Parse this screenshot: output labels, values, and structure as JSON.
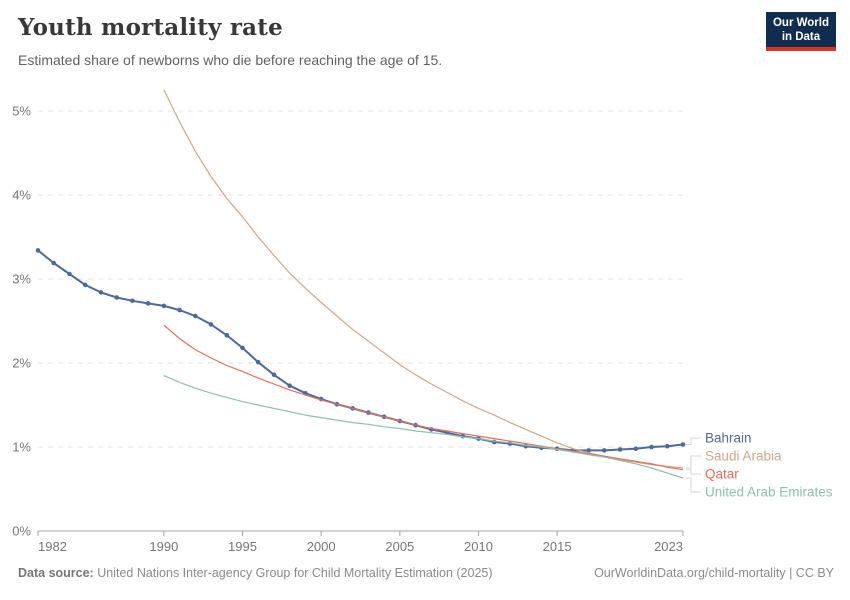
{
  "header": {
    "title": "Youth mortality rate",
    "subtitle": "Estimated share of newborns who die before reaching the age of 15."
  },
  "logo": {
    "line1": "Our World",
    "line2": "in Data",
    "bg_color": "#102d50",
    "accent_color": "#dc3226"
  },
  "footer": {
    "source_label": "Data source:",
    "source_text": "United Nations Inter-agency Group for Child Mortality Estimation (2025)",
    "link_text": "OurWorldinData.org/child-mortality",
    "separator": "|",
    "license_text": "CC BY"
  },
  "chart_data": {
    "type": "line",
    "title": "Youth mortality rate",
    "unit": "%",
    "xlim": [
      1982,
      2023
    ],
    "ylim": [
      0,
      5.3
    ],
    "x_ticks": [
      "1982",
      "1990",
      "1995",
      "2000",
      "2005",
      "2010",
      "2015",
      "2023"
    ],
    "y_ticks": [
      "0%",
      "1%",
      "2%",
      "3%",
      "4%",
      "5%"
    ],
    "grid": "horizontal-dashed",
    "legend_position": "right-of-line-ends",
    "colors": {
      "gridline": "#e0e0e0",
      "axis": "#a3a3a3",
      "tick_label": "#757575",
      "legend_connector": "#d4d4d4"
    },
    "series": [
      {
        "name": "Bahrain",
        "color": "#4c6a9c",
        "markers": true,
        "start_year": 1982,
        "end_year": 2023,
        "values": [
          3.34,
          3.19,
          3.06,
          2.93,
          2.84,
          2.78,
          2.74,
          2.71,
          2.68,
          2.63,
          2.56,
          2.46,
          2.33,
          2.18,
          2.01,
          1.86,
          1.73,
          1.64,
          1.57,
          1.51,
          1.46,
          1.41,
          1.36,
          1.31,
          1.26,
          1.21,
          1.17,
          1.13,
          1.1,
          1.06,
          1.04,
          1.01,
          0.99,
          0.98,
          0.96,
          0.96,
          0.96,
          0.97,
          0.98,
          1.0,
          1.01,
          1.03
        ]
      },
      {
        "name": "Saudi Arabia",
        "color": "#d3a585",
        "markers": false,
        "start_year": 1990,
        "end_year": 2023,
        "values": [
          5.25,
          4.87,
          4.52,
          4.22,
          3.96,
          3.74,
          3.5,
          3.28,
          3.07,
          2.89,
          2.72,
          2.56,
          2.4,
          2.26,
          2.12,
          1.98,
          1.86,
          1.75,
          1.65,
          1.55,
          1.46,
          1.38,
          1.29,
          1.21,
          1.13,
          1.05,
          0.98,
          0.93,
          0.89,
          0.85,
          0.82,
          0.79,
          0.77,
          0.75
        ]
      },
      {
        "name": "Qatar",
        "color": "#e56e5a",
        "markers": false,
        "start_year": 1990,
        "end_year": 2023,
        "values": [
          2.45,
          2.29,
          2.16,
          2.06,
          1.97,
          1.9,
          1.82,
          1.75,
          1.68,
          1.62,
          1.56,
          1.51,
          1.46,
          1.41,
          1.36,
          1.31,
          1.26,
          1.22,
          1.19,
          1.16,
          1.13,
          1.1,
          1.07,
          1.04,
          1.01,
          0.98,
          0.95,
          0.92,
          0.89,
          0.86,
          0.83,
          0.8,
          0.76,
          0.73
        ]
      },
      {
        "name": "United Arab Emirates",
        "color": "#8cc0ad",
        "markers": false,
        "start_year": 1990,
        "end_year": 2023,
        "values": [
          1.85,
          1.77,
          1.7,
          1.64,
          1.59,
          1.54,
          1.5,
          1.46,
          1.42,
          1.38,
          1.35,
          1.32,
          1.29,
          1.27,
          1.24,
          1.22,
          1.19,
          1.17,
          1.15,
          1.12,
          1.1,
          1.07,
          1.05,
          1.02,
          1.0,
          0.97,
          0.94,
          0.91,
          0.88,
          0.84,
          0.8,
          0.75,
          0.69,
          0.63
        ]
      }
    ]
  }
}
